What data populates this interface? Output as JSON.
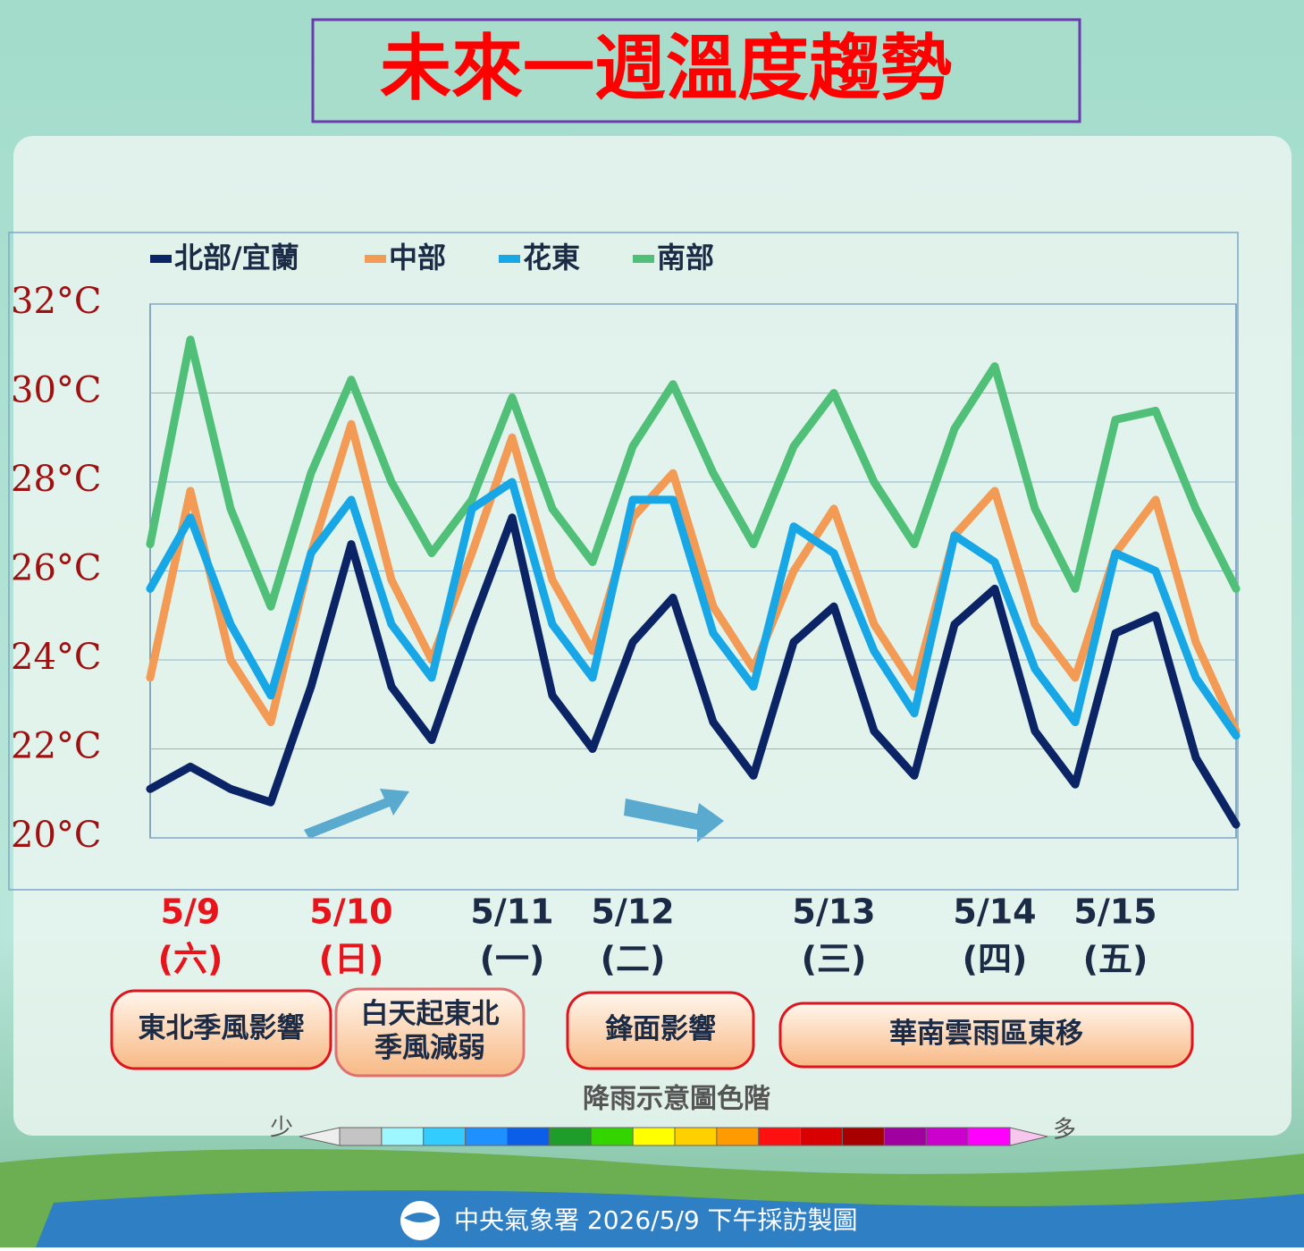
{
  "chart_data": {
    "type": "line",
    "title": "未來一週溫度趨勢",
    "categories": [
      null,
      "5/9",
      null,
      null,
      null,
      "5/10",
      null,
      null,
      null,
      "5/11",
      null,
      null,
      "5/12",
      null,
      null,
      null,
      null,
      "5/13",
      null,
      null,
      null,
      "5/14",
      null,
      null,
      "5/15",
      null,
      null,
      null
    ],
    "weekdays": [
      null,
      "(六)",
      null,
      null,
      null,
      "(日)",
      null,
      null,
      null,
      "(一)",
      null,
      null,
      "(二)",
      null,
      null,
      null,
      null,
      "(三)",
      null,
      null,
      null,
      "(四)",
      null,
      null,
      "(五)",
      null,
      null,
      null
    ],
    "highlight_dates": [
      "5/9",
      "5/10"
    ],
    "highlight_color": "#e8141c",
    "date_color": "#1c2b45",
    "series": [
      {
        "name": "北部/宜蘭",
        "color": "#0b2465",
        "values": [
          21.1,
          21.6,
          21.1,
          20.8,
          23.4,
          26.6,
          23.4,
          22.2,
          24.8,
          27.2,
          23.2,
          22.0,
          24.4,
          25.4,
          22.6,
          21.4,
          24.4,
          25.2,
          22.4,
          21.4,
          24.8,
          25.6,
          22.4,
          21.2,
          24.6,
          25.0,
          21.8,
          20.3
        ]
      },
      {
        "name": "中部",
        "color": "#f39a55",
        "values": [
          23.6,
          27.8,
          24.0,
          22.6,
          26.4,
          29.3,
          25.8,
          24.0,
          26.4,
          29.0,
          25.8,
          24.2,
          27.2,
          28.2,
          25.2,
          23.8,
          26.0,
          27.4,
          24.8,
          23.4,
          26.8,
          27.8,
          24.8,
          23.6,
          26.4,
          27.6,
          24.4,
          22.4
        ]
      },
      {
        "name": "花東",
        "color": "#17a6e6",
        "values": [
          25.6,
          27.2,
          24.8,
          23.2,
          26.4,
          27.6,
          24.8,
          23.6,
          27.4,
          28.0,
          24.8,
          23.6,
          27.6,
          27.6,
          24.6,
          23.4,
          27.0,
          26.4,
          24.2,
          22.8,
          26.8,
          26.2,
          23.8,
          22.6,
          26.4,
          26.0,
          23.6,
          22.3
        ]
      },
      {
        "name": "南部",
        "color": "#50bf78",
        "values": [
          26.6,
          31.2,
          27.4,
          25.2,
          28.2,
          30.3,
          28.0,
          26.4,
          27.6,
          29.9,
          27.4,
          26.2,
          28.8,
          30.2,
          28.2,
          26.6,
          28.8,
          30.0,
          28.0,
          26.6,
          29.2,
          30.6,
          27.4,
          25.6,
          29.4,
          29.6,
          27.4,
          25.6
        ]
      }
    ],
    "ylim": [
      20,
      32
    ],
    "yticks": [
      {
        "value": 20,
        "label": "20°C"
      },
      {
        "value": 22,
        "label": "22°C"
      },
      {
        "value": 24,
        "label": "24°C"
      },
      {
        "value": 26,
        "label": "26°C"
      },
      {
        "value": 28,
        "label": "28°C"
      },
      {
        "value": 30,
        "label": "30°C"
      },
      {
        "value": 32,
        "label": "32°C"
      }
    ],
    "grid": true,
    "annotations": [
      [
        "東北季風影響"
      ],
      [
        "白天起東北",
        "季風減弱"
      ],
      [
        "鋒面影響"
      ],
      [
        "華南雲雨區東移"
      ]
    ],
    "rain_scale": {
      "title": "降雨示意圖色階",
      "low": "少",
      "high": "多",
      "colors": [
        "#c4c4c4",
        "#9ef7ff",
        "#33ccff",
        "#1e90ff",
        "#0b5ee8",
        "#1f9d2a",
        "#33d400",
        "#ffff00",
        "#ffd000",
        "#ff9a00",
        "#ff1010",
        "#d80000",
        "#a80000",
        "#a000a0",
        "#cc00cc",
        "#ff00ff"
      ]
    },
    "footer": "中央氣象署 2026/5/9 下午採訪製圖"
  }
}
